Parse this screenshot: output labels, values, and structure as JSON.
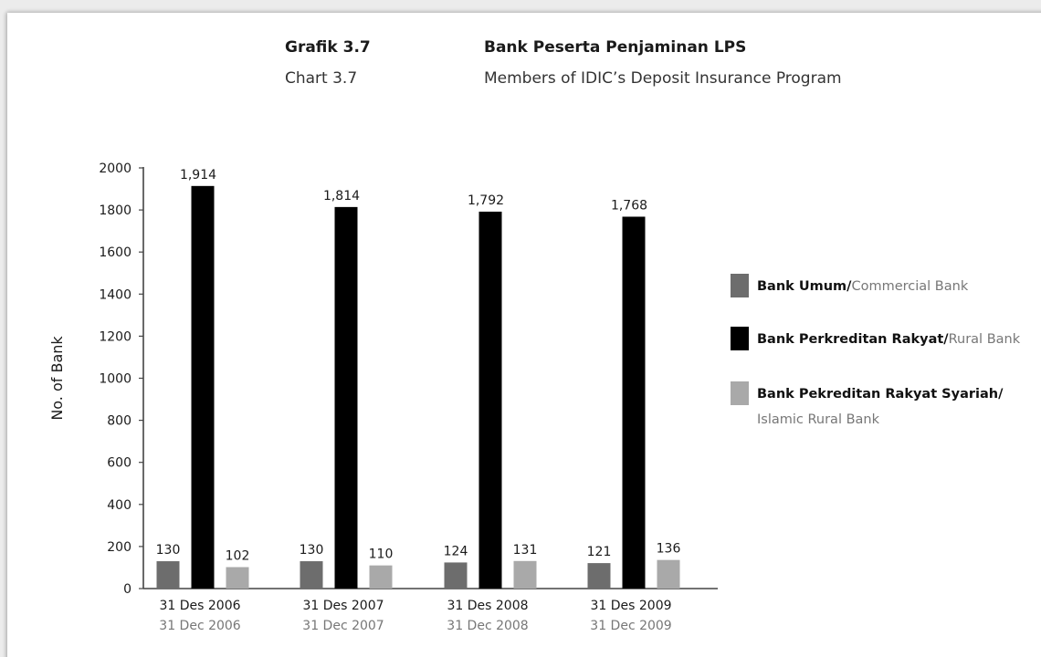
{
  "header": {
    "chart_no_id": "Grafik 3.7",
    "chart_no_en": "Chart 3.7",
    "title_id": "Bank Peserta Penjaminan LPS",
    "title_en": "Members of IDIC’s Deposit Insurance Program"
  },
  "legend": {
    "items": [
      {
        "bold": "Bank Umum/",
        "normal": "Commercial Bank",
        "color": "#6d6d6d"
      },
      {
        "bold": "Bank Perkreditan Rakyat/",
        "normal": "Rural Bank",
        "color": "#000000"
      },
      {
        "bold": "Bank Pekreditan Rakyat Syariah/",
        "normal": "",
        "color": "#a9a9a9"
      }
    ],
    "item3_line2": "Islamic Rural Bank"
  },
  "chart_data": {
    "type": "bar",
    "ylabel": "No. of Bank",
    "xlabel": "",
    "ylim": [
      0,
      2000
    ],
    "yticks": [
      0,
      200,
      400,
      600,
      800,
      1000,
      1200,
      1400,
      1600,
      1800,
      2000
    ],
    "categories": [
      "31 Des 2006",
      "31 Des 2007",
      "31 Des 2008",
      "31 Des 2009"
    ],
    "categories_en": [
      "31 Dec 2006",
      "31 Dec 2007",
      "31 Dec 2008",
      "31 Dec 2009"
    ],
    "series": [
      {
        "name": "Bank Umum/Commercial Bank",
        "color": "#6d6d6d",
        "values": [
          130,
          130,
          124,
          121
        ],
        "labels": [
          "130",
          "130",
          "124",
          "121"
        ]
      },
      {
        "name": "Bank Perkreditan Rakyat/Rural Bank",
        "color": "#000000",
        "values": [
          1914,
          1814,
          1792,
          1768
        ],
        "labels": [
          "1,914",
          "1,814",
          "1,792",
          "1,768"
        ]
      },
      {
        "name": "Bank Pekreditan Rakyat Syariah/Islamic Rural Bank",
        "color": "#a9a9a9",
        "values": [
          102,
          110,
          131,
          136
        ],
        "labels": [
          "102",
          "110",
          "131",
          "136"
        ]
      }
    ],
    "grid": false,
    "legend_position": "right"
  }
}
